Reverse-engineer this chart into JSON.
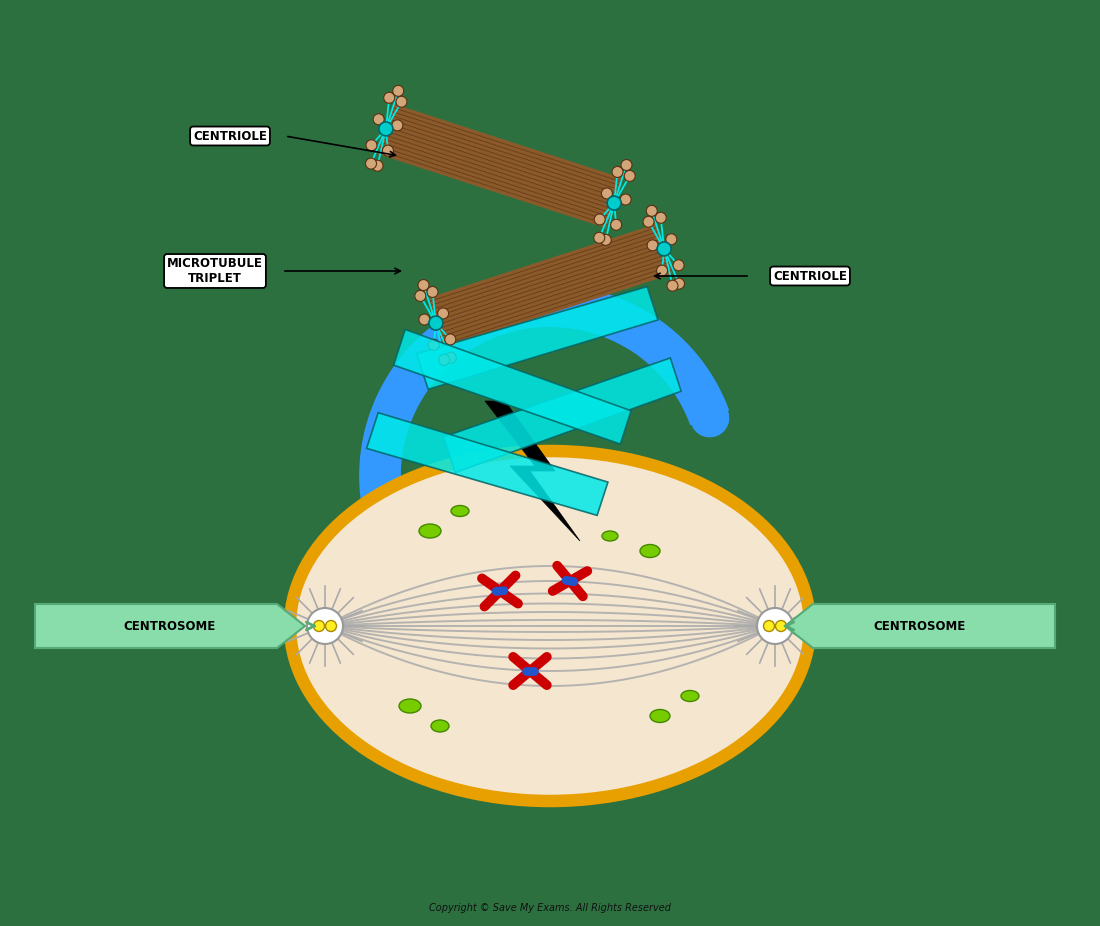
{
  "bg_color": "#2d7040",
  "title_text": "Copyright © Save My Exams. All Rights Reserved",
  "label_centriole_1": "CENTRIOLE",
  "label_centriole_2": "CENTRIOLE",
  "label_microtubule": "MICROTUBULE\nTRIPLET",
  "label_centrosome_left": "CENTROSOME",
  "label_centrosome_right": "CENTROSOME",
  "cyan_color": "#00e8e8",
  "brown_color": "#8B5A2B",
  "brown_dark": "#5a3010",
  "tan_end_color": "#D2A679",
  "blue_ring_color": "#3399ff",
  "cell_fill": "#f5e6d0",
  "cell_border": "#e8a000",
  "spindle_color": "#aaaaaa",
  "chromosome_red": "#cc0000",
  "chromosome_blue": "#2255cc",
  "green_blob_color": "#77cc00",
  "centrosome_yellow": "#ffee22",
  "label_fill": "#ffffff",
  "label_border": "#000000",
  "centrosome_arrow_fill": "#88ddaa",
  "centrosome_arrow_border": "#55aa77",
  "bolt_color": "#000000"
}
